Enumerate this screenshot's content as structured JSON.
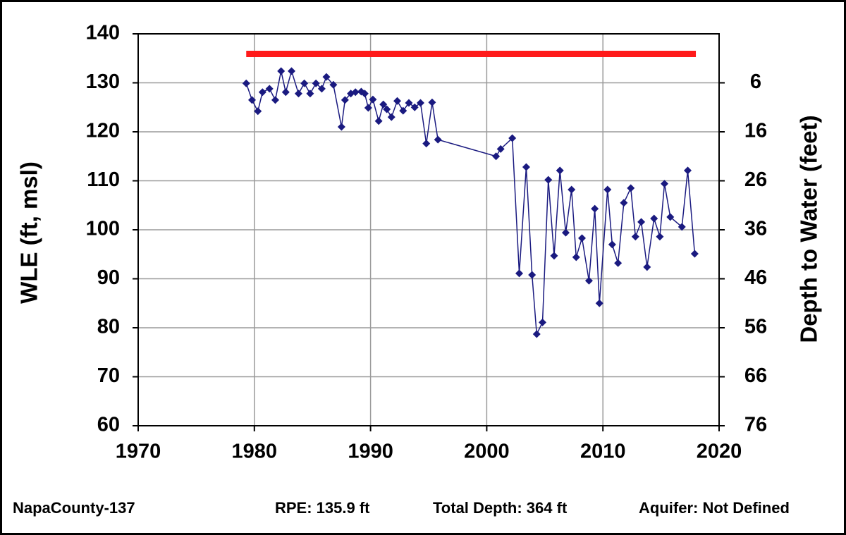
{
  "chart_data": {
    "type": "line",
    "ylabel": "WLE (ft, msl)",
    "y2label": "Depth to Water (feet)",
    "xlim": [
      1970,
      2020
    ],
    "xticks": [
      1970,
      1980,
      1990,
      2000,
      2010,
      2020
    ],
    "ylim": [
      60,
      140
    ],
    "yticks": [
      60,
      70,
      80,
      90,
      100,
      110,
      120,
      130,
      140
    ],
    "y2lim": [
      76,
      -4
    ],
    "y2ticks": [
      6,
      16,
      26,
      36,
      46,
      56,
      66,
      76
    ],
    "grid": true,
    "series": [
      {
        "color": "#1a1a80",
        "x": [
          1979.3,
          1979.8,
          1980.3,
          1980.7,
          1981.3,
          1981.8,
          1982.3,
          1982.7,
          1983.2,
          1983.8,
          1984.3,
          1984.8,
          1985.3,
          1985.8,
          1986.2,
          1986.8,
          1987.5,
          1987.8,
          1988.3,
          1988.7,
          1989.2,
          1989.5,
          1989.8,
          1990.2,
          1990.7,
          1991.1,
          1991.4,
          1991.8,
          1992.3,
          1992.8,
          1993.3,
          1993.8,
          1994.3,
          1994.8,
          1995.3,
          1995.8,
          2000.8,
          2001.2,
          2002.2,
          2002.8,
          2003.4,
          2003.9,
          2004.3,
          2004.8,
          2005.3,
          2005.8,
          2006.3,
          2006.8,
          2007.3,
          2007.7,
          2008.2,
          2008.8,
          2009.3,
          2009.7,
          2010.4,
          2010.8,
          2011.3,
          2011.8,
          2012.4,
          2012.8,
          2013.3,
          2013.8,
          2014.4,
          2014.9,
          2015.3,
          2015.8,
          2016.8,
          2017.3,
          2017.9
        ],
        "values": [
          129.9,
          126.5,
          124.2,
          128.1,
          128.8,
          126.5,
          132.4,
          128.1,
          132.4,
          127.8,
          129.9,
          127.8,
          129.9,
          128.8,
          131.2,
          129.6,
          121.0,
          126.5,
          127.8,
          128.1,
          128.2,
          127.8,
          124.9,
          126.6,
          122.2,
          125.6,
          124.6,
          123.0,
          126.3,
          124.3,
          125.9,
          125.0,
          125.9,
          117.6,
          126.0,
          118.4,
          115.0,
          116.5,
          118.7,
          91.1,
          112.8,
          90.8,
          78.7,
          81.1,
          110.2,
          94.7,
          112.1,
          99.4,
          108.2,
          94.4,
          98.3,
          89.6,
          104.3,
          85.0,
          108.2,
          97.0,
          93.2,
          105.5,
          108.5,
          98.6,
          101.6,
          92.4,
          102.3,
          98.6,
          109.4,
          102.6,
          100.6,
          112.1,
          95.1
        ]
      }
    ],
    "rpe_line": {
      "y": 135.9,
      "x": [
        1979.3,
        2018
      ],
      "color": "#ff1a1a"
    },
    "annotations": [
      "NapaCounty-137",
      "RPE: 135.9 ft",
      "Total Depth: 364 ft",
      "Aquifer: Not Defined"
    ]
  }
}
